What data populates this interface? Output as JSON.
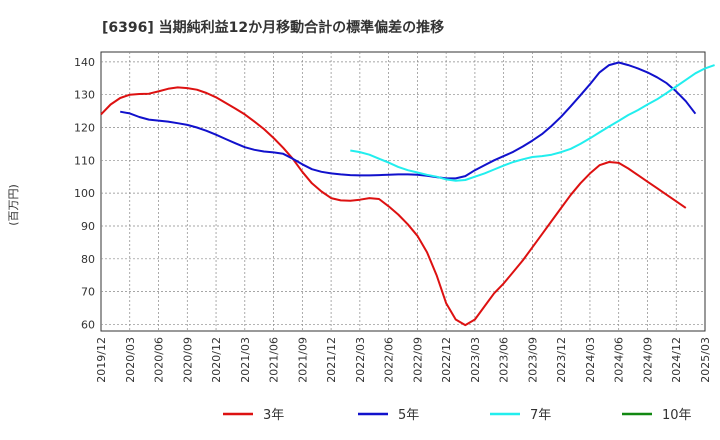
{
  "chart_data": {
    "type": "line",
    "title": "[6396]  当期純利益12か月移動合計の標準偏差の推移",
    "ylabel": "(百万円)",
    "xlabel": "",
    "ylim": [
      58,
      143
    ],
    "yticks": [
      60,
      70,
      80,
      90,
      100,
      110,
      120,
      130,
      140
    ],
    "xlim": [
      "2019-12",
      "2025-03"
    ],
    "x_ticks": [
      "2019/12",
      "2020/03",
      "2020/06",
      "2020/09",
      "2020/12",
      "2021/03",
      "2021/06",
      "2021/09",
      "2021/12",
      "2022/03",
      "2022/06",
      "2022/09",
      "2022/12",
      "2023/03",
      "2023/06",
      "2023/09",
      "2023/12",
      "2024/03",
      "2024/06",
      "2024/09",
      "2024/12",
      "2025/03"
    ],
    "grid": true,
    "legend_position": "bottom",
    "series": [
      {
        "name": "3年",
        "color": "#dd1111",
        "points": [
          [
            "2019-12",
            124
          ],
          [
            "2020-01",
            127
          ],
          [
            "2020-02",
            129
          ],
          [
            "2020-03",
            130
          ],
          [
            "2020-04",
            130.2
          ],
          [
            "2020-05",
            130.3
          ],
          [
            "2020-06",
            131
          ],
          [
            "2020-07",
            131.8
          ],
          [
            "2020-08",
            132.2
          ],
          [
            "2020-09",
            132
          ],
          [
            "2020-10",
            131.5
          ],
          [
            "2020-11",
            130.5
          ],
          [
            "2020-12",
            129.2
          ],
          [
            "2021-01",
            127.5
          ],
          [
            "2021-02",
            125.8
          ],
          [
            "2021-03",
            124
          ],
          [
            "2021-04",
            121.8
          ],
          [
            "2021-05",
            119.5
          ],
          [
            "2021-06",
            116.8
          ],
          [
            "2021-07",
            113.8
          ],
          [
            "2021-08",
            110.5
          ],
          [
            "2021-09",
            106.5
          ],
          [
            "2021-10",
            103
          ],
          [
            "2021-11",
            100.5
          ],
          [
            "2021-12",
            98.5
          ],
          [
            "2022-01",
            97.8
          ],
          [
            "2022-02",
            97.7
          ],
          [
            "2022-03",
            98
          ],
          [
            "2022-04",
            98.5
          ],
          [
            "2022-05",
            98.2
          ],
          [
            "2022-06",
            96
          ],
          [
            "2022-07",
            93.5
          ],
          [
            "2022-08",
            90.5
          ],
          [
            "2022-09",
            87
          ],
          [
            "2022-10",
            82
          ],
          [
            "2022-11",
            75
          ],
          [
            "2022-12",
            66.5
          ],
          [
            "2023-01",
            61.5
          ],
          [
            "2023-02",
            59.8
          ],
          [
            "2023-03",
            61.5
          ],
          [
            "2023-04",
            65.5
          ],
          [
            "2023-05",
            69.5
          ],
          [
            "2023-06",
            72.5
          ],
          [
            "2023-07",
            76
          ],
          [
            "2023-08",
            79.5
          ],
          [
            "2023-09",
            83.5
          ],
          [
            "2023-10",
            87.5
          ],
          [
            "2023-11",
            91.5
          ],
          [
            "2023-12",
            95.5
          ],
          [
            "2024-01",
            99.5
          ],
          [
            "2024-02",
            103
          ],
          [
            "2024-03",
            106
          ],
          [
            "2024-04",
            108.5
          ],
          [
            "2024-05",
            109.5
          ],
          [
            "2024-06",
            109.2
          ],
          [
            "2024-07",
            107.5
          ],
          [
            "2024-08",
            105.5
          ],
          [
            "2024-09",
            103.5
          ],
          [
            "2024-10",
            101.5
          ],
          [
            "2024-11",
            99.5
          ],
          [
            "2024-12",
            97.5
          ],
          [
            "2025-01",
            95.5
          ]
        ]
      },
      {
        "name": "5年",
        "color": "#1111cc",
        "points": [
          [
            "2020-02",
            124.8
          ],
          [
            "2020-03",
            124.3
          ],
          [
            "2020-04",
            123.2
          ],
          [
            "2020-05",
            122.4
          ],
          [
            "2020-06",
            122.1
          ],
          [
            "2020-07",
            121.8
          ],
          [
            "2020-08",
            121.3
          ],
          [
            "2020-09",
            120.8
          ],
          [
            "2020-10",
            120
          ],
          [
            "2020-11",
            119
          ],
          [
            "2020-12",
            117.8
          ],
          [
            "2021-01",
            116.5
          ],
          [
            "2021-02",
            115.2
          ],
          [
            "2021-03",
            114
          ],
          [
            "2021-04",
            113.2
          ],
          [
            "2021-05",
            112.7
          ],
          [
            "2021-06",
            112.4
          ],
          [
            "2021-07",
            112
          ],
          [
            "2021-08",
            110.5
          ],
          [
            "2021-09",
            108.8
          ],
          [
            "2021-10",
            107.3
          ],
          [
            "2021-11",
            106.5
          ],
          [
            "2021-12",
            106
          ],
          [
            "2022-01",
            105.7
          ],
          [
            "2022-02",
            105.5
          ],
          [
            "2022-03",
            105.4
          ],
          [
            "2022-04",
            105.4
          ],
          [
            "2022-05",
            105.5
          ],
          [
            "2022-06",
            105.6
          ],
          [
            "2022-07",
            105.7
          ],
          [
            "2022-08",
            105.7
          ],
          [
            "2022-09",
            105.6
          ],
          [
            "2022-10",
            105.3
          ],
          [
            "2022-11",
            104.9
          ],
          [
            "2022-12",
            104.5
          ],
          [
            "2023-01",
            104.5
          ],
          [
            "2023-02",
            105.2
          ],
          [
            "2023-03",
            107
          ],
          [
            "2023-04",
            108.5
          ],
          [
            "2023-05",
            110
          ],
          [
            "2023-06",
            111.3
          ],
          [
            "2023-07",
            112.6
          ],
          [
            "2023-08",
            114.2
          ],
          [
            "2023-09",
            116
          ],
          [
            "2023-10",
            118
          ],
          [
            "2023-11",
            120.5
          ],
          [
            "2023-12",
            123.3
          ],
          [
            "2024-01",
            126.5
          ],
          [
            "2024-02",
            129.8
          ],
          [
            "2024-03",
            133.2
          ],
          [
            "2024-04",
            136.8
          ],
          [
            "2024-05",
            139
          ],
          [
            "2024-06",
            139.8
          ],
          [
            "2024-07",
            139
          ],
          [
            "2024-08",
            138
          ],
          [
            "2024-09",
            136.8
          ],
          [
            "2024-10",
            135.3
          ],
          [
            "2024-11",
            133.5
          ],
          [
            "2024-12",
            131
          ],
          [
            "2025-01",
            128
          ],
          [
            "2025-02",
            124.2
          ]
        ]
      },
      {
        "name": "7年",
        "color": "#22eeee",
        "points": [
          [
            "2022-02",
            113
          ],
          [
            "2022-03",
            112.5
          ],
          [
            "2022-04",
            111.7
          ],
          [
            "2022-05",
            110.5
          ],
          [
            "2022-06",
            109.3
          ],
          [
            "2022-07",
            108
          ],
          [
            "2022-08",
            107
          ],
          [
            "2022-09",
            106.3
          ],
          [
            "2022-10",
            105.6
          ],
          [
            "2022-11",
            105
          ],
          [
            "2022-12",
            104.2
          ],
          [
            "2023-01",
            103.8
          ],
          [
            "2023-02",
            104
          ],
          [
            "2023-03",
            105
          ],
          [
            "2023-04",
            106
          ],
          [
            "2023-05",
            107.2
          ],
          [
            "2023-06",
            108.4
          ],
          [
            "2023-07",
            109.5
          ],
          [
            "2023-08",
            110.3
          ],
          [
            "2023-09",
            111
          ],
          [
            "2023-10",
            111.3
          ],
          [
            "2023-11",
            111.7
          ],
          [
            "2023-12",
            112.5
          ],
          [
            "2024-01",
            113.5
          ],
          [
            "2024-02",
            115
          ],
          [
            "2024-03",
            116.7
          ],
          [
            "2024-04",
            118.5
          ],
          [
            "2024-05",
            120.3
          ],
          [
            "2024-06",
            122
          ],
          [
            "2024-07",
            123.8
          ],
          [
            "2024-08",
            125.3
          ],
          [
            "2024-09",
            127
          ],
          [
            "2024-10",
            128.6
          ],
          [
            "2024-11",
            130.5
          ],
          [
            "2024-12",
            132.5
          ],
          [
            "2025-01",
            134.5
          ],
          [
            "2025-02",
            136.5
          ],
          [
            "2025-03",
            138
          ],
          [
            "2025-04",
            139
          ]
        ]
      },
      {
        "name": "10年",
        "color": "#118811",
        "points": []
      }
    ]
  }
}
